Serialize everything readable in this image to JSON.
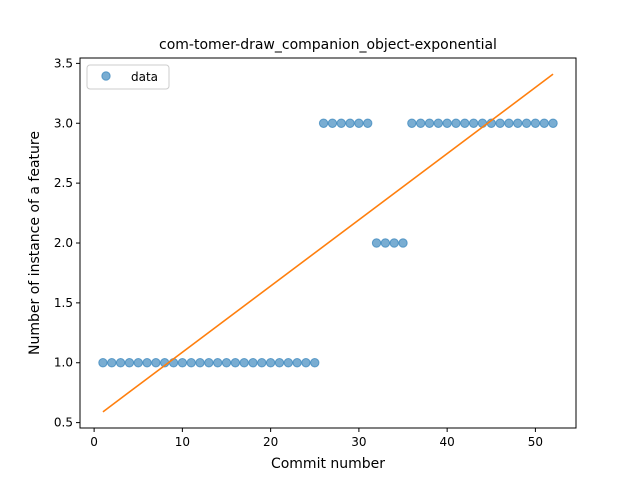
{
  "chart_data": {
    "type": "scatter",
    "title": "com-tomer-draw_companion_object-exponential",
    "xlabel": "Commit number",
    "ylabel": "Number of instance of a feature",
    "xlim": [
      -1.6,
      54.6
    ],
    "ylim": [
      0.455,
      3.545
    ],
    "xticks": [
      0,
      10,
      20,
      30,
      40,
      50
    ],
    "yticks": [
      0.5,
      1.0,
      1.5,
      2.0,
      2.5,
      3.0,
      3.5
    ],
    "xtick_labels": [
      "0",
      "10",
      "20",
      "30",
      "40",
      "50"
    ],
    "ytick_labels": [
      "0.5",
      "1.0",
      "1.5",
      "2.0",
      "2.5",
      "3.0",
      "3.5"
    ],
    "grid": false,
    "legend": {
      "position": "top-left",
      "entries": [
        "data"
      ]
    },
    "colors": {
      "data": "#1f77b4",
      "fit": "#ff7f0e"
    },
    "series": [
      {
        "name": "data",
        "kind": "scatter",
        "x": [
          1,
          2,
          3,
          4,
          5,
          6,
          7,
          8,
          9,
          10,
          11,
          12,
          13,
          14,
          15,
          16,
          17,
          18,
          19,
          20,
          21,
          22,
          23,
          24,
          25,
          26,
          27,
          28,
          29,
          30,
          31,
          32,
          33,
          34,
          35,
          36,
          37,
          38,
          39,
          40,
          41,
          42,
          43,
          44,
          45,
          46,
          47,
          48,
          49,
          50,
          51,
          52
        ],
        "y": [
          1,
          1,
          1,
          1,
          1,
          1,
          1,
          1,
          1,
          1,
          1,
          1,
          1,
          1,
          1,
          1,
          1,
          1,
          1,
          1,
          1,
          1,
          1,
          1,
          1,
          3,
          3,
          3,
          3,
          3,
          3,
          2,
          2,
          2,
          2,
          3,
          3,
          3,
          3,
          3,
          3,
          3,
          3,
          3,
          3,
          3,
          3,
          3,
          3,
          3,
          3,
          3
        ]
      },
      {
        "kind": "line",
        "x": [
          1,
          52
        ],
        "y": [
          0.59,
          3.41
        ]
      }
    ]
  }
}
